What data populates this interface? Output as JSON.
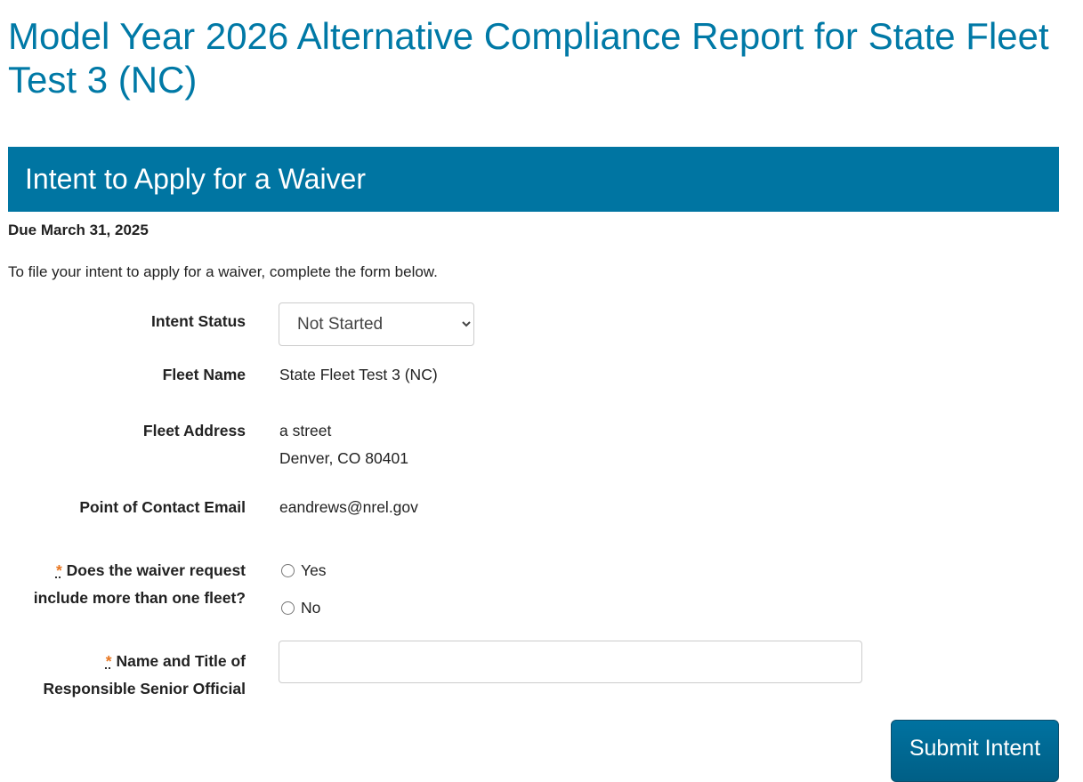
{
  "page_title": "Model Year 2026 Alternative Compliance Report for State Fleet Test 3 (NC)",
  "section": {
    "title": "Intent to Apply for a Waiver",
    "due": "Due March 31, 2025",
    "intro": "To file your intent to apply for a waiver, complete the form below."
  },
  "form": {
    "intent_status_label": "Intent Status",
    "intent_status_value": "Not Started",
    "fleet_name_label": "Fleet Name",
    "fleet_name": "State Fleet Test 3 (NC)",
    "fleet_address_label": "Fleet Address",
    "address_line1": "a street",
    "address_line2": "Denver, CO 80401",
    "poc_email_label": "Point of Contact Email",
    "poc_email": "eandrews@nrel.gov",
    "required_marker": "*",
    "multi_fleet_label_1": "Does the waiver request",
    "multi_fleet_label_2": "include more than one fleet?",
    "yes": "Yes",
    "no": "No",
    "official_label_1": "Name and Title of",
    "official_label_2": "Responsible Senior Official",
    "official_value": "",
    "submit": "Submit Intent"
  },
  "colors": {
    "brand": "#0075a2",
    "title": "#0079a6",
    "required": "#e87722"
  }
}
